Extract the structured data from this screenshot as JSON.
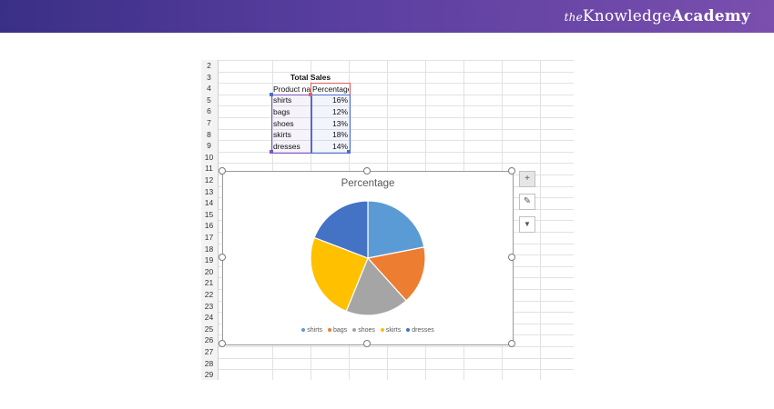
{
  "brand": {
    "prefix": "the",
    "name_part1": "Knowledge",
    "name_part2": "Academy"
  },
  "sheet": {
    "row_numbers": [
      "2",
      "3",
      "4",
      "5",
      "6",
      "7",
      "8",
      "9",
      "10",
      "11",
      "12",
      "13",
      "14",
      "15",
      "16",
      "17",
      "18",
      "19",
      "20",
      "21",
      "22",
      "23",
      "24",
      "25",
      "26",
      "27",
      "28",
      "29"
    ],
    "table_title": "Total Sales",
    "header_product": "Product na",
    "header_percentage": "Percentage",
    "rows": [
      {
        "product": "shirts",
        "pct": "16%"
      },
      {
        "product": "bags",
        "pct": "12%"
      },
      {
        "product": "shoes",
        "pct": "13%"
      },
      {
        "product": "skirts",
        "pct": "18%"
      },
      {
        "product": "dresses",
        "pct": "14%"
      }
    ]
  },
  "chart_buttons": [
    {
      "name": "chart-elements-button",
      "icon": "plus-icon",
      "glyph": "+"
    },
    {
      "name": "chart-styles-button",
      "icon": "brush-icon",
      "glyph": "✎"
    },
    {
      "name": "chart-filters-button",
      "icon": "filter-icon",
      "glyph": "▼"
    }
  ],
  "chart_data": {
    "type": "pie",
    "title": "Percentage",
    "categories": [
      "shirts",
      "bags",
      "shoes",
      "skirts",
      "dresses"
    ],
    "values": [
      16,
      12,
      13,
      18,
      14
    ],
    "colors": [
      "#5b9bd5",
      "#ed7d31",
      "#a5a5a5",
      "#ffc000",
      "#4472c4"
    ],
    "legend": "bottom"
  }
}
